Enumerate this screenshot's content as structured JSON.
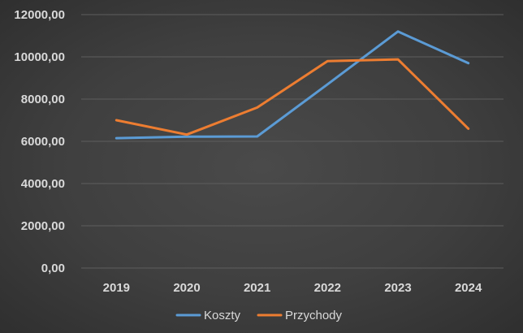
{
  "chart_data": {
    "type": "line",
    "categories": [
      "2019",
      "2020",
      "2021",
      "2022",
      "2023",
      "2024"
    ],
    "series": [
      {
        "name": "Koszty",
        "color": "#5b9bd5",
        "values": [
          6150,
          6220,
          6230,
          8700,
          11200,
          9700
        ]
      },
      {
        "name": "Przychody",
        "color": "#ed7d31",
        "values": [
          7000,
          6320,
          7600,
          9800,
          9880,
          6600
        ]
      }
    ],
    "yticks": [
      "0,00",
      "2000,00",
      "4000,00",
      "6000,00",
      "8000,00",
      "10000,00",
      "12000,00"
    ],
    "ylim": [
      0,
      12000
    ],
    "grid": true,
    "legend_position": "bottom",
    "title": "",
    "xlabel": "",
    "ylabel": ""
  }
}
